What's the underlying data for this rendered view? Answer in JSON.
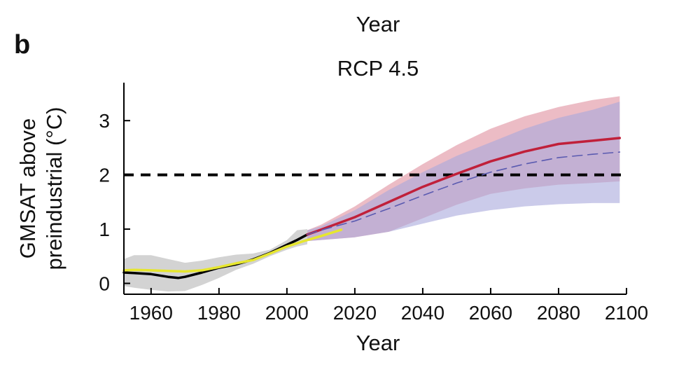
{
  "panel_label": "b",
  "top_label": "Year",
  "chart_data": {
    "type": "line",
    "title": "RCP 4.5",
    "xlabel": "Year",
    "ylabel": "GMSAT above\npreindustrial (°C)",
    "xlim": [
      1952,
      2100
    ],
    "ylim": [
      -0.2,
      3.7
    ],
    "xticks": [
      1960,
      1980,
      2000,
      2020,
      2040,
      2060,
      2080,
      2100
    ],
    "yticks": [
      0,
      1,
      2,
      3
    ],
    "reference_line": {
      "y": 2,
      "style": "dashed",
      "color": "#000000"
    },
    "grid": false,
    "colors": {
      "historical_band": "#b5b5b5",
      "red_band": "#e0909e",
      "blue_band": "#a9a9dc",
      "red_line": "#c0203a",
      "blue_dashed_line": "#5a5ab0",
      "black_line": "#000000",
      "yellow_line": "#e6e62e"
    },
    "bands": [
      {
        "color_key": "historical_band",
        "x": [
          1952,
          1955,
          1960,
          1965,
          1970,
          1975,
          1980,
          1985,
          1990,
          1995,
          2000,
          2003,
          2006
        ],
        "lower": [
          -0.05,
          -0.08,
          -0.12,
          -0.15,
          -0.14,
          -0.03,
          0.1,
          0.25,
          0.36,
          0.5,
          0.62,
          0.68,
          0.72
        ],
        "upper": [
          0.45,
          0.52,
          0.52,
          0.45,
          0.38,
          0.42,
          0.48,
          0.53,
          0.55,
          0.62,
          0.8,
          0.98,
          1.0
        ]
      },
      {
        "color_key": "red_band",
        "x": [
          2006,
          2010,
          2020,
          2030,
          2040,
          2050,
          2060,
          2070,
          2080,
          2090,
          2098
        ],
        "lower": [
          0.78,
          0.8,
          0.85,
          0.95,
          1.2,
          1.45,
          1.65,
          1.75,
          1.82,
          1.85,
          1.88
        ],
        "upper": [
          0.98,
          1.08,
          1.42,
          1.82,
          2.2,
          2.55,
          2.85,
          3.08,
          3.25,
          3.38,
          3.45
        ]
      },
      {
        "color_key": "blue_band",
        "x": [
          2006,
          2010,
          2020,
          2030,
          2040,
          2050,
          2060,
          2070,
          2080,
          2090,
          2098
        ],
        "lower": [
          0.78,
          0.8,
          0.85,
          0.95,
          1.1,
          1.25,
          1.35,
          1.42,
          1.46,
          1.48,
          1.48
        ],
        "upper": [
          0.98,
          1.05,
          1.35,
          1.72,
          2.05,
          2.35,
          2.6,
          2.85,
          3.05,
          3.2,
          3.35
        ]
      }
    ],
    "series": [
      {
        "color_key": "black_line",
        "dash": false,
        "x": [
          1952,
          1955,
          1960,
          1965,
          1968,
          1970,
          1975,
          1980,
          1985,
          1990,
          1995,
          2000,
          2003,
          2006
        ],
        "values": [
          0.2,
          0.19,
          0.17,
          0.12,
          0.1,
          0.12,
          0.2,
          0.29,
          0.35,
          0.44,
          0.56,
          0.71,
          0.8,
          0.9
        ]
      },
      {
        "color_key": "yellow_line",
        "dash": false,
        "x": [
          1952,
          1955,
          1960,
          1965,
          1970,
          1975,
          1980,
          1985,
          1990,
          1995,
          2000,
          2005,
          2010,
          2016
        ],
        "values": [
          0.24,
          0.25,
          0.24,
          0.23,
          0.22,
          0.24,
          0.3,
          0.37,
          0.43,
          0.55,
          0.68,
          0.78,
          0.87,
          0.99
        ]
      },
      {
        "color_key": "red_line",
        "dash": false,
        "x": [
          2006,
          2010,
          2020,
          2030,
          2040,
          2050,
          2060,
          2070,
          2080,
          2090,
          2098
        ],
        "values": [
          0.9,
          0.99,
          1.22,
          1.5,
          1.78,
          2.02,
          2.25,
          2.43,
          2.57,
          2.63,
          2.68
        ]
      },
      {
        "color_key": "blue_dashed_line",
        "dash": true,
        "x": [
          2006,
          2010,
          2020,
          2030,
          2040,
          2050,
          2060,
          2070,
          2080,
          2090,
          2098
        ],
        "values": [
          0.9,
          0.98,
          1.15,
          1.38,
          1.62,
          1.85,
          2.05,
          2.2,
          2.32,
          2.38,
          2.42
        ]
      }
    ]
  }
}
